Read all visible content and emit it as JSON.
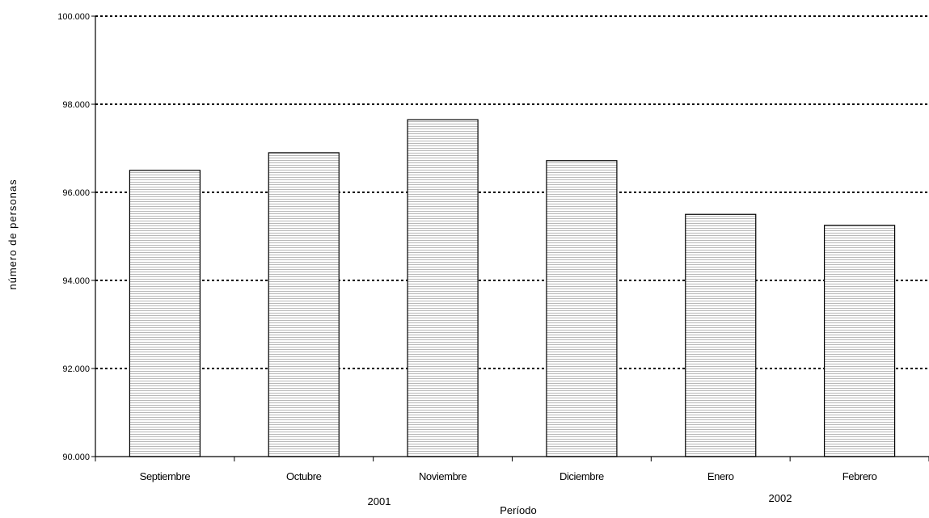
{
  "chart_data": {
    "type": "bar",
    "title": "",
    "xlabel": "Período",
    "ylabel": "número de personas",
    "categories": [
      "Septiembre",
      "Octubre",
      "Noviembre",
      "Diciembre",
      "Enero",
      "Febrero"
    ],
    "values": [
      96500,
      96900,
      97650,
      96720,
      95500,
      95250
    ],
    "year_groups": [
      {
        "label": "2001",
        "categories": [
          "Septiembre",
          "Octubre",
          "Noviembre",
          "Diciembre"
        ]
      },
      {
        "label": "2002",
        "categories": [
          "Enero",
          "Febrero"
        ]
      }
    ],
    "ylim": [
      90000,
      100000
    ],
    "yticks": [
      90000,
      92000,
      94000,
      96000,
      98000,
      100000
    ],
    "ytick_labels": [
      "90.000",
      "92.000",
      "94.000",
      "96.000",
      "98.000",
      "100.000"
    ],
    "grid": true,
    "legend": "none"
  }
}
